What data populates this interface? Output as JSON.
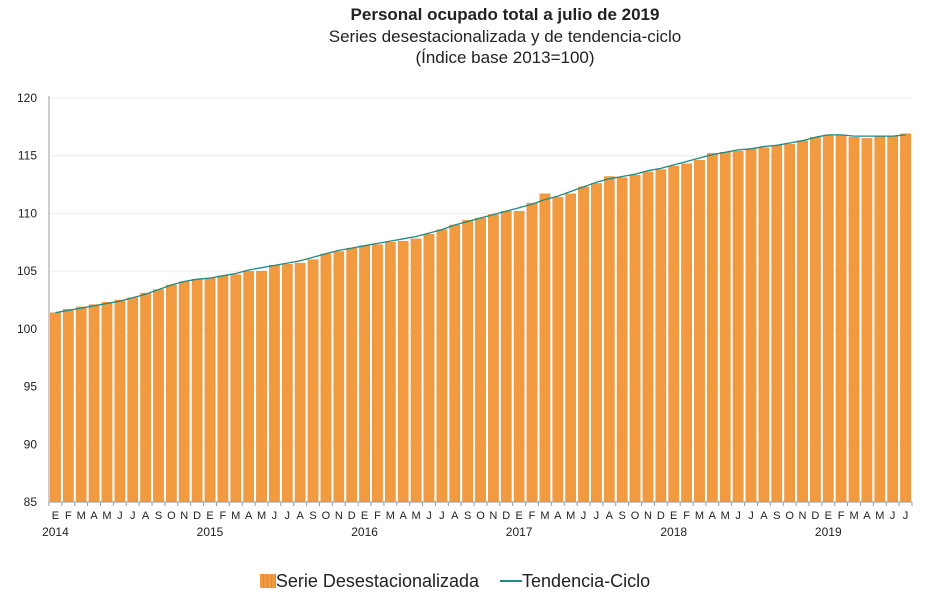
{
  "colors": {
    "bar": "#f29a3f",
    "bar_edge": "#e6892b",
    "trend": "#1e8a82",
    "axis": "#9a9a9a",
    "text": "#222222"
  },
  "chart_data": {
    "type": "bar",
    "title": "Personal ocupado total a julio de 2019",
    "subtitle": "Series desestacionalizada  y de tendencia-ciclo",
    "subtitle2": "(Índice base 2013=100)",
    "xlabel": "",
    "ylabel": "",
    "ylim": [
      85,
      120
    ],
    "yticks": [
      85,
      90,
      95,
      100,
      105,
      110,
      115,
      120
    ],
    "grid": true,
    "month_labels": [
      "E",
      "F",
      "M",
      "A",
      "M",
      "J",
      "J",
      "A",
      "S",
      "O",
      "N",
      "D",
      "E",
      "F",
      "M",
      "A",
      "M",
      "J",
      "J",
      "A",
      "S",
      "O",
      "N",
      "D",
      "E",
      "F",
      "M",
      "A",
      "M",
      "J",
      "J",
      "A",
      "S",
      "O",
      "N",
      "D",
      "E",
      "F",
      "M",
      "A",
      "M",
      "J",
      "J",
      "A",
      "S",
      "O",
      "N",
      "D",
      "E",
      "F",
      "M",
      "A",
      "M",
      "J",
      "J",
      "A",
      "S",
      "O",
      "N",
      "D",
      "E",
      "F",
      "M",
      "A",
      "M",
      "J",
      "J"
    ],
    "year_labels": [
      {
        "label": "2014",
        "index": 0
      },
      {
        "label": "2015",
        "index": 12
      },
      {
        "label": "2016",
        "index": 24
      },
      {
        "label": "2017",
        "index": 36
      },
      {
        "label": "2018",
        "index": 48
      },
      {
        "label": "2019",
        "index": 60
      }
    ],
    "series": [
      {
        "name": "Serie Desestacionalizada",
        "type": "bar",
        "values": [
          101.4,
          101.7,
          101.9,
          102.1,
          102.3,
          102.5,
          102.7,
          103.1,
          103.4,
          103.8,
          104.1,
          104.3,
          104.4,
          104.6,
          104.7,
          105.0,
          105.0,
          105.5,
          105.6,
          105.7,
          106.0,
          106.5,
          106.7,
          107.0,
          107.2,
          107.3,
          107.5,
          107.6,
          107.8,
          108.2,
          108.6,
          109.0,
          109.4,
          109.6,
          109.9,
          110.2,
          110.2,
          110.9,
          111.7,
          111.4,
          111.7,
          112.3,
          112.6,
          113.2,
          113.1,
          113.3,
          113.6,
          113.8,
          114.1,
          114.3,
          114.6,
          115.2,
          115.3,
          115.4,
          115.6,
          115.7,
          115.9,
          116.0,
          116.3,
          116.6,
          116.8,
          116.8,
          116.6,
          116.5,
          116.7,
          116.7,
          116.9
        ]
      },
      {
        "name": "Tendencia-Ciclo",
        "type": "line",
        "values": [
          101.4,
          101.6,
          101.8,
          102.0,
          102.2,
          102.4,
          102.7,
          103.0,
          103.4,
          103.8,
          104.1,
          104.3,
          104.4,
          104.6,
          104.8,
          105.1,
          105.3,
          105.5,
          105.7,
          105.9,
          106.2,
          106.5,
          106.8,
          107.0,
          107.2,
          107.4,
          107.6,
          107.8,
          108.0,
          108.3,
          108.6,
          109.0,
          109.3,
          109.6,
          109.9,
          110.2,
          110.5,
          110.8,
          111.2,
          111.5,
          111.9,
          112.3,
          112.7,
          113.0,
          113.2,
          113.4,
          113.7,
          113.9,
          114.2,
          114.5,
          114.8,
          115.1,
          115.3,
          115.5,
          115.6,
          115.8,
          115.9,
          116.1,
          116.3,
          116.6,
          116.8,
          116.8,
          116.7,
          116.7,
          116.7,
          116.7,
          116.8
        ]
      }
    ]
  }
}
